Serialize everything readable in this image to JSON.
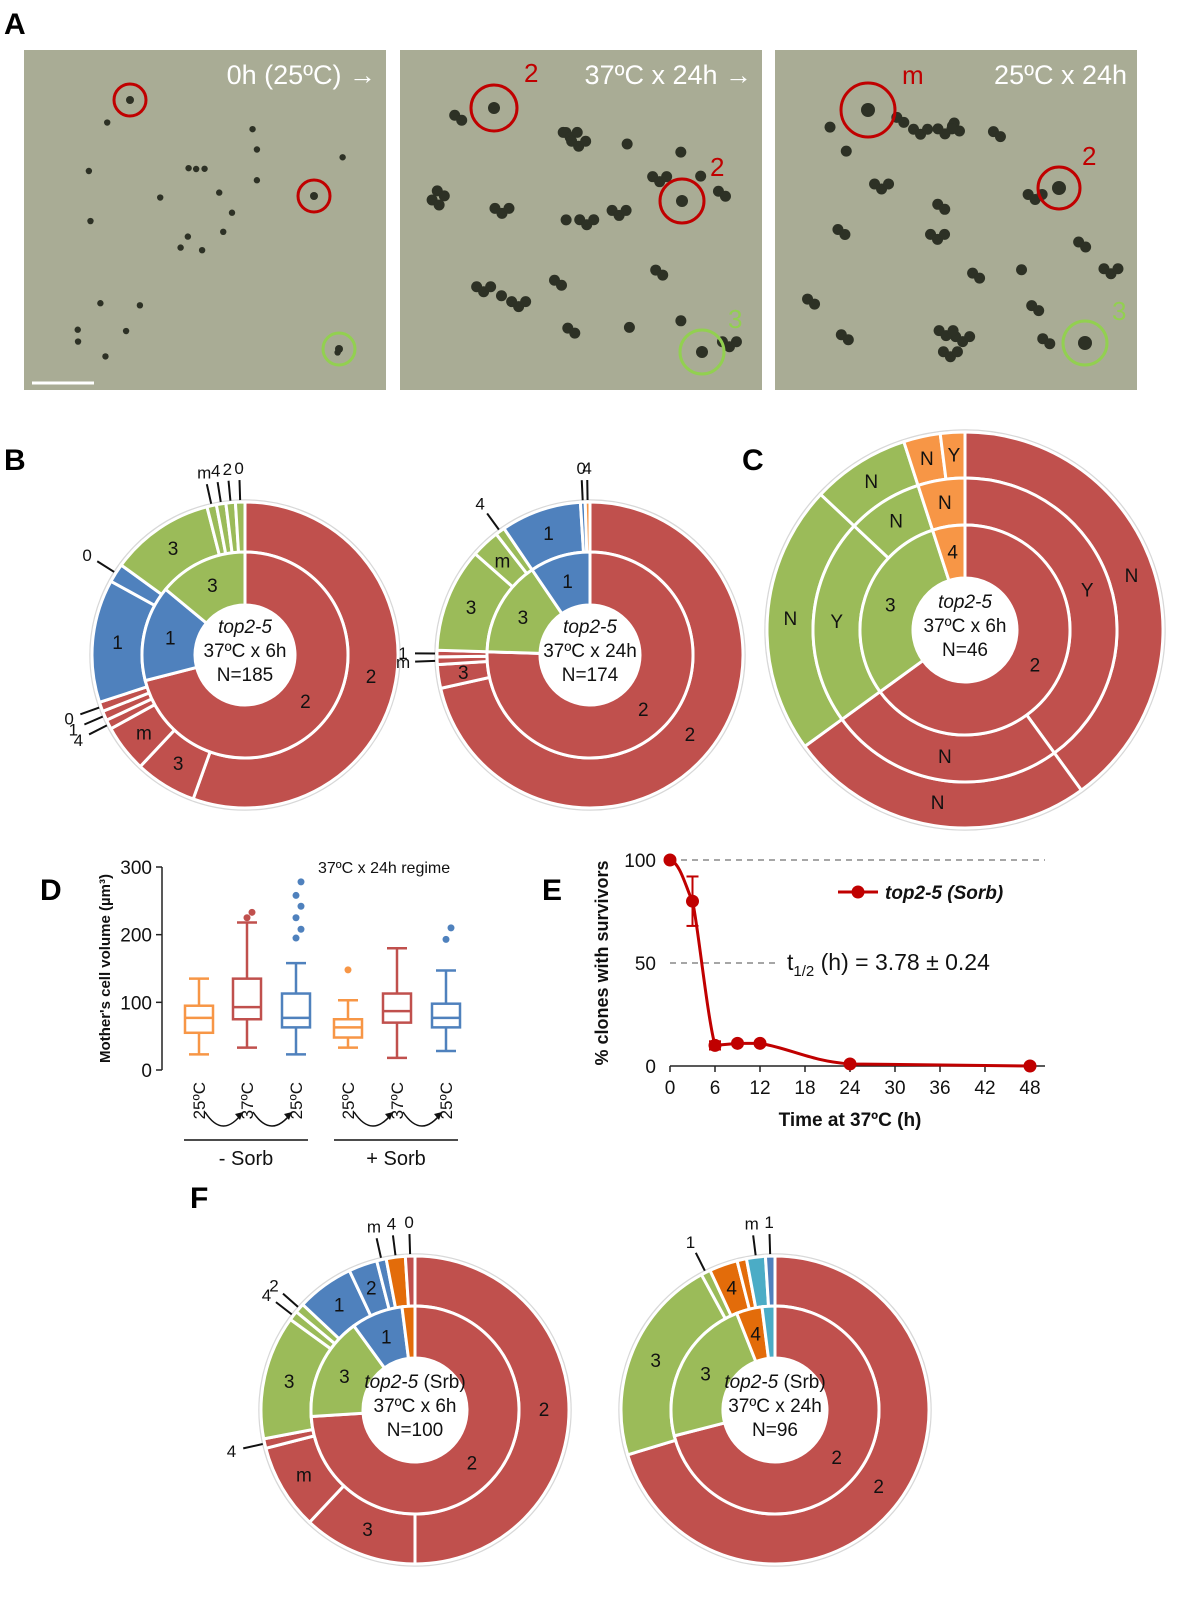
{
  "colors": {
    "red": "#c0504d",
    "green": "#9bbb59",
    "blue": "#4f81bd",
    "orange": "#f79646",
    "dorange": "#e36c0a",
    "teal": "#4bacc6",
    "micro": "#a9ac95",
    "circle_red": "#c00000",
    "circle_green": "#92d050"
  },
  "panel_letters": [
    "A",
    "B",
    "C",
    "D",
    "E",
    "F"
  ],
  "panelA": {
    "frames": [
      {
        "caption": "0h (25ºC) →",
        "marks": []
      },
      {
        "caption": "37ºC x 24h →",
        "marks": [
          "2",
          "2",
          "3"
        ]
      },
      {
        "caption": "25ºC x 24h",
        "marks": [
          "m",
          "2",
          "3"
        ]
      }
    ]
  },
  "panelB": {
    "charts": [
      {
        "center": [
          "top2-5",
          "37ºC x 6h",
          "N=185"
        ],
        "inner": [
          {
            "label": "2",
            "value": 71,
            "color": "red"
          },
          {
            "label": "1",
            "value": 15,
            "color": "blue"
          },
          {
            "label": "3",
            "value": 14,
            "color": "green"
          }
        ],
        "outer": [
          {
            "label": "2",
            "value": 55.5,
            "color": "red"
          },
          {
            "label": "3",
            "value": 6.5,
            "color": "red"
          },
          {
            "label": "m",
            "value": 5,
            "color": "red"
          },
          {
            "label": "4",
            "value": 1,
            "color": "red",
            "callout": true
          },
          {
            "label": "1",
            "value": 1,
            "color": "red",
            "callout": true
          },
          {
            "label": "0",
            "value": 1,
            "color": "red",
            "callout": true
          },
          {
            "label": "1",
            "value": 13,
            "color": "blue"
          },
          {
            "label": "0",
            "value": 2,
            "color": "blue",
            "callout": true
          },
          {
            "label": "3",
            "value": 11,
            "color": "green"
          },
          {
            "label": "m",
            "value": 1,
            "color": "green",
            "callout": true
          },
          {
            "label": "4",
            "value": 1,
            "color": "green",
            "callout": true
          },
          {
            "label": "2",
            "value": 1,
            "color": "green",
            "callout": true
          },
          {
            "label": "0",
            "value": 1,
            "color": "green",
            "callout": true
          }
        ]
      },
      {
        "center": [
          "top2-5",
          "37ºC x 24h",
          "N=174"
        ],
        "inner": [
          {
            "label": "2",
            "value": 75.5,
            "color": "red"
          },
          {
            "label": "3",
            "value": 15,
            "color": "green"
          },
          {
            "label": "1",
            "value": 9.5,
            "color": "blue"
          }
        ],
        "outer": [
          {
            "label": "2",
            "value": 71.5,
            "color": "red"
          },
          {
            "label": "3",
            "value": 2.5,
            "color": "red"
          },
          {
            "label": "m",
            "value": 0.8,
            "color": "red",
            "callout": true
          },
          {
            "label": "1",
            "value": 0.7,
            "color": "red",
            "callout": true
          },
          {
            "label": "3",
            "value": 11,
            "color": "green"
          },
          {
            "label": "m",
            "value": 3,
            "color": "green"
          },
          {
            "label": "4",
            "value": 1,
            "color": "green",
            "callout": true
          },
          {
            "label": "1",
            "value": 8.5,
            "color": "blue"
          },
          {
            "label": "0",
            "value": 0.5,
            "color": "blue",
            "callout": true
          },
          {
            "label": "4",
            "value": 0.5,
            "color": "orange",
            "callout": true
          }
        ]
      }
    ]
  },
  "panelC": {
    "center": [
      "top2-5",
      "37ºC x 6h",
      "N=46"
    ],
    "rings": [
      [
        {
          "label": "2",
          "value": 65,
          "color": "red"
        },
        {
          "label": "3",
          "value": 30,
          "color": "green"
        },
        {
          "label": "4",
          "value": 5,
          "color": "orange"
        }
      ],
      [
        {
          "label": "Y",
          "value": 40,
          "color": "red"
        },
        {
          "label": "N",
          "value": 25,
          "color": "red"
        },
        {
          "label": "Y",
          "value": 22,
          "color": "green"
        },
        {
          "label": "N",
          "value": 8,
          "color": "green"
        },
        {
          "label": "N",
          "value": 5,
          "color": "orange"
        }
      ],
      [
        {
          "label": "N",
          "value": 40,
          "color": "red"
        },
        {
          "label": "N",
          "value": 25,
          "color": "red"
        },
        {
          "label": "N",
          "value": 22,
          "color": "green"
        },
        {
          "label": "N",
          "value": 8,
          "color": "green"
        },
        {
          "label": "N",
          "value": 3,
          "color": "orange"
        },
        {
          "label": "Y",
          "value": 2,
          "color": "orange"
        }
      ]
    ]
  },
  "panelD": {
    "type": "box",
    "ylabel": "Mother's cell volume (µm³)",
    "note": "37ºC x 24h regime",
    "ylim": [
      0,
      300
    ],
    "yticks": [
      "0",
      "100",
      "200",
      "300"
    ],
    "groups": [
      "- Sorb",
      "+ Sorb"
    ],
    "boxes": [
      {
        "label": "25ºC",
        "color": "orange",
        "min": 23,
        "q1": 55,
        "median": 77,
        "q3": 95,
        "max": 135,
        "outliers": []
      },
      {
        "label": "37ºC",
        "color": "red",
        "min": 33,
        "q1": 75,
        "median": 93,
        "q3": 135,
        "max": 218,
        "outliers": [
          225,
          233
        ]
      },
      {
        "label": "25ºC",
        "color": "blue",
        "min": 23,
        "q1": 63,
        "median": 77,
        "q3": 113,
        "max": 158,
        "outliers": [
          195,
          208,
          225,
          242,
          258,
          278
        ]
      },
      {
        "label": "25ºC",
        "color": "orange",
        "min": 33,
        "q1": 48,
        "median": 63,
        "q3": 75,
        "max": 103,
        "outliers": [
          148
        ]
      },
      {
        "label": "37ºC",
        "color": "red",
        "min": 18,
        "q1": 70,
        "median": 87,
        "q3": 113,
        "max": 180,
        "outliers": []
      },
      {
        "label": "25ºC",
        "color": "blue",
        "min": 28,
        "q1": 63,
        "median": 77,
        "q3": 98,
        "max": 147,
        "outliers": [
          193,
          210
        ]
      }
    ]
  },
  "panelE": {
    "type": "line",
    "ylabel": "% clones with survivors",
    "xlabel": "Time at 37ºC (h)",
    "legend": "top2-5 (Sorb)",
    "annotation_t": "t",
    "annotation_sub": "1/2",
    "annotation_rest": " (h) = 3.78 ± 0.24",
    "xlim": [
      0,
      48
    ],
    "ylim": [
      0,
      100
    ],
    "xticks": [
      "0",
      "6",
      "12",
      "18",
      "24",
      "30",
      "36",
      "42",
      "48"
    ],
    "yticks": [
      "0",
      "50",
      "100"
    ],
    "points": [
      {
        "x": 0,
        "y": 100,
        "err": 0
      },
      {
        "x": 3,
        "y": 80,
        "err": 12
      },
      {
        "x": 6,
        "y": 10,
        "err": 2
      },
      {
        "x": 9,
        "y": 11,
        "err": 0
      },
      {
        "x": 12,
        "y": 11,
        "err": 0
      },
      {
        "x": 24,
        "y": 1,
        "err": 0
      },
      {
        "x": 48,
        "y": 0,
        "err": 0
      }
    ]
  },
  "panelF": {
    "charts": [
      {
        "center": [
          "top2-5 (Srb)",
          "37ºC x 6h",
          "N=100"
        ],
        "inner": [
          {
            "label": "2",
            "value": 74,
            "color": "red"
          },
          {
            "label": "3",
            "value": 16,
            "color": "green"
          },
          {
            "label": "1",
            "value": 8,
            "color": "blue"
          },
          {
            "label": "",
            "value": 2,
            "color": "dorange"
          }
        ],
        "outer": [
          {
            "label": "2",
            "value": 50,
            "color": "red"
          },
          {
            "label": "3",
            "value": 12,
            "color": "red"
          },
          {
            "label": "m",
            "value": 9,
            "color": "red"
          },
          {
            "label": "4",
            "value": 1,
            "color": "red",
            "callout": true
          },
          {
            "label": "3",
            "value": 13,
            "color": "green"
          },
          {
            "label": "4",
            "value": 1,
            "color": "green",
            "callout": true
          },
          {
            "label": "2",
            "value": 1,
            "color": "green",
            "callout": true
          },
          {
            "label": "1",
            "value": 6,
            "color": "blue"
          },
          {
            "label": "2",
            "value": 3,
            "color": "blue"
          },
          {
            "label": "m",
            "value": 1,
            "color": "blue",
            "callout": true
          },
          {
            "label": "4",
            "value": 2,
            "color": "dorange",
            "callout": true
          },
          {
            "label": "0",
            "value": 1,
            "color": "red",
            "callout": true
          }
        ]
      },
      {
        "center": [
          "top2-5 (Srb)",
          "37ºC x 24h",
          "N=96"
        ],
        "inner": [
          {
            "label": "2",
            "value": 71,
            "color": "red"
          },
          {
            "label": "3",
            "value": 23,
            "color": "green"
          },
          {
            "label": "4",
            "value": 4,
            "color": "dorange"
          },
          {
            "label": "",
            "value": 2,
            "color": "teal"
          }
        ],
        "outer": [
          {
            "label": "2",
            "value": 71,
            "color": "red"
          },
          {
            "label": "3",
            "value": 22,
            "color": "green"
          },
          {
            "label": "1",
            "value": 1,
            "color": "green",
            "callout": true
          },
          {
            "label": "4",
            "value": 3,
            "color": "dorange"
          },
          {
            "label": "",
            "value": 1,
            "color": "dorange"
          },
          {
            "label": "m",
            "value": 2,
            "color": "teal",
            "callout": true
          },
          {
            "label": "1",
            "value": 1,
            "color": "blue",
            "callout": true
          }
        ]
      }
    ]
  }
}
